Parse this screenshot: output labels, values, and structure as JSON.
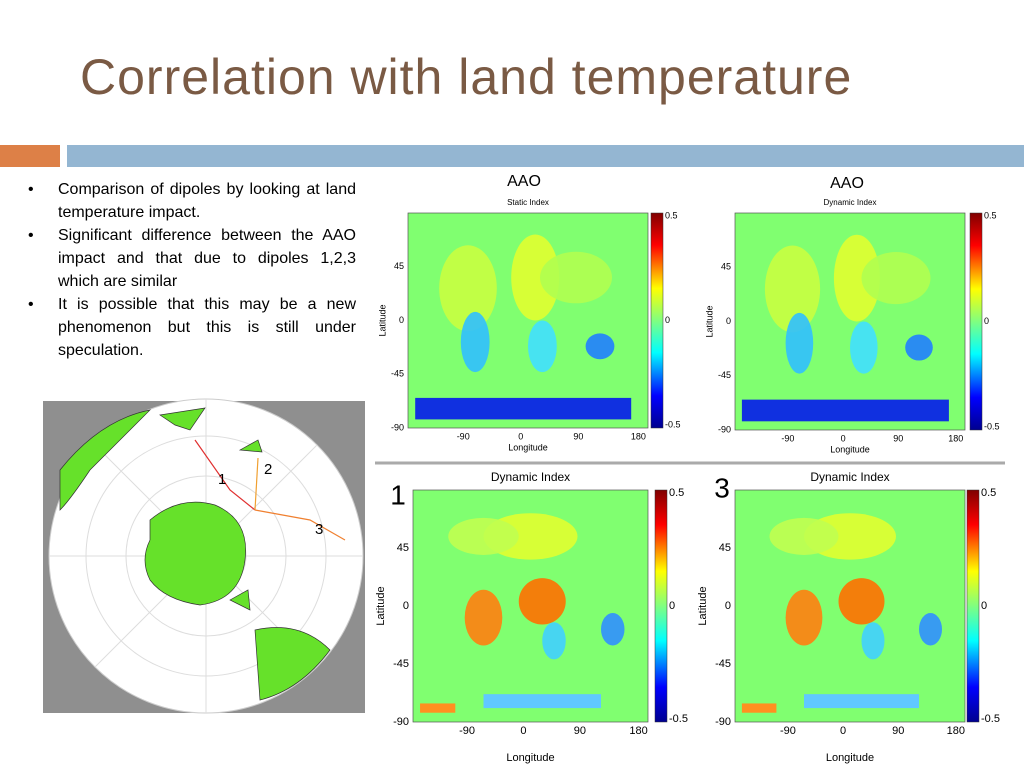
{
  "title": "Correlation with land temperature",
  "bullets": [
    "Comparison of dipoles by looking at land temperature impact.",
    "Significant difference between the AAO impact and that due to dipoles 1,2,3 which are similar",
    "It is possible that this may be a new phenomenon but this is still under speculation."
  ],
  "polar_map": {
    "dipole_labels": [
      "1",
      "2",
      "3"
    ]
  },
  "map_axes": {
    "xlabel": "Longitude",
    "ylabel": "Latitude",
    "xticks": [
      "-90",
      "0",
      "90",
      "180"
    ],
    "yticks": [
      "45",
      "0",
      "-45",
      "-90"
    ],
    "colorbar_ticks": [
      "0.5",
      "0",
      "-0.5"
    ]
  },
  "panels": [
    {
      "label": "AAO",
      "map_title": "Static Index"
    },
    {
      "label": "AAO",
      "map_title": "Dynamic Index"
    },
    {
      "label": "1",
      "map_title": "Dynamic Index"
    },
    {
      "label": "3",
      "map_title": "Dynamic Index"
    }
  ]
}
